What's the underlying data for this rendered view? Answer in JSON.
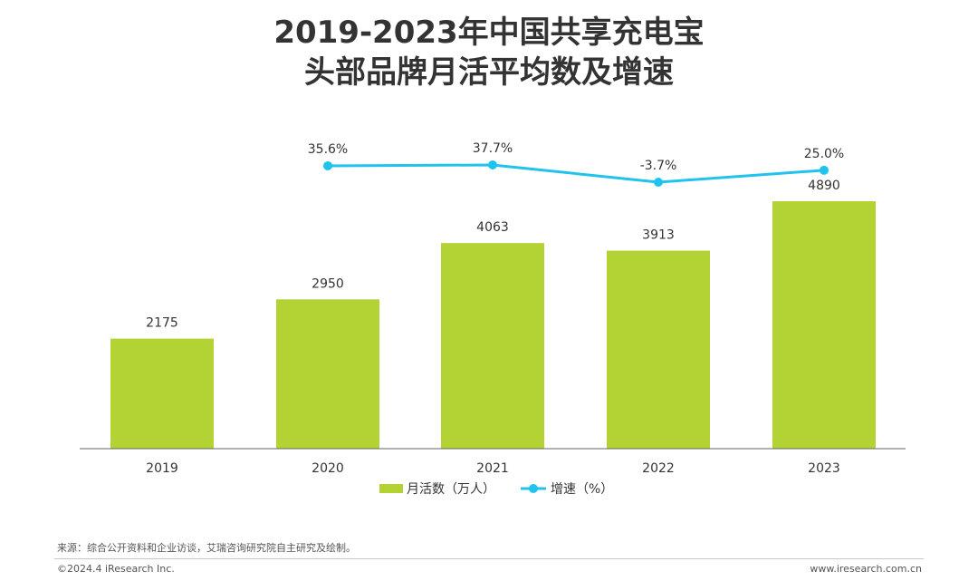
{
  "title_line1": "2019-2023年中国共享充电宝",
  "title_line2": "头部品牌月活平均数及增速",
  "colors": {
    "bar": "#b3d234",
    "line": "#1fc3ee",
    "text": "#333333",
    "axis": "#666666"
  },
  "chart_data": {
    "type": "bar",
    "categories": [
      "2019",
      "2020",
      "2021",
      "2022",
      "2023"
    ],
    "series": [
      {
        "name": "月活数（万人）",
        "type": "bar",
        "values": [
          2175,
          2950,
          4063,
          3913,
          4890
        ],
        "labels": [
          "2175",
          "2950",
          "4063",
          "3913",
          "4890"
        ]
      },
      {
        "name": "增速（%）",
        "type": "line",
        "values": [
          null,
          35.6,
          37.7,
          -3.7,
          25.0
        ],
        "labels": [
          "",
          "35.6%",
          "37.7%",
          "-3.7%",
          "25.0%"
        ]
      }
    ],
    "legend_position": "bottom"
  },
  "footer": {
    "source": "来源：综合公开资料和企业访谈，艾瑞咨询研究院自主研究及绘制。",
    "copyright": "©2024.4 iResearch Inc.",
    "website": "www.iresearch.com.cn"
  }
}
